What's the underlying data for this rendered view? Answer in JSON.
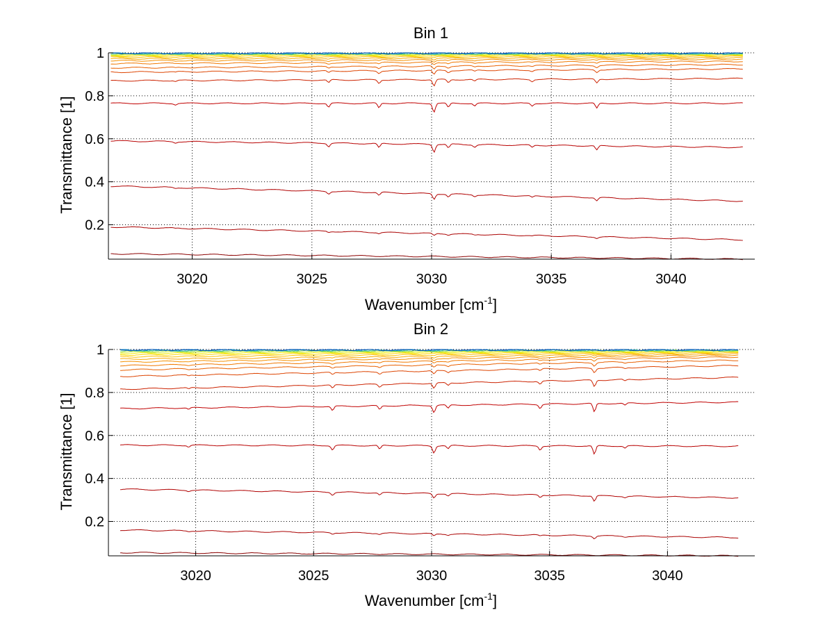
{
  "chart_data": [
    {
      "type": "line",
      "title": "Bin 1",
      "xlabel": "Wavenumber [cm",
      "xlabel_sup": "-1",
      "xlabel_suffix": "]",
      "ylabel": "Transmittance [1]",
      "xlim": [
        3016.5,
        3043.5
      ],
      "ylim": [
        0.04,
        1.0
      ],
      "xticks": [
        3020,
        3025,
        3030,
        3035,
        3040
      ],
      "yticks": [
        0.2,
        0.4,
        0.6,
        0.8,
        1
      ],
      "xtick_labels": [
        "3020",
        "3025",
        "3030",
        "3035",
        "3040"
      ],
      "ytick_labels": [
        "0.2",
        "0.4",
        "0.6",
        "0.8",
        "1"
      ],
      "grid": true,
      "x_range": [
        3016.6,
        3043.0
      ],
      "dips": [
        {
          "x": 3019.3,
          "depth": 0.15
        },
        {
          "x": 3025.7,
          "depth": 0.45
        },
        {
          "x": 3027.8,
          "depth": 0.55
        },
        {
          "x": 3030.1,
          "depth": 1.0
        },
        {
          "x": 3030.7,
          "depth": 0.5
        },
        {
          "x": 3031.8,
          "depth": 0.3
        },
        {
          "x": 3034.2,
          "depth": 0.3
        },
        {
          "x": 3036.9,
          "depth": 0.6
        }
      ],
      "series": [
        {
          "start": 0.065,
          "end": 0.04,
          "dip_scale": 0.0,
          "color": "#8b0000"
        },
        {
          "start": 0.19,
          "end": 0.13,
          "dip_scale": 0.01,
          "color": "#aa0000"
        },
        {
          "start": 0.38,
          "end": 0.31,
          "dip_scale": 0.025,
          "color": "#b00000"
        },
        {
          "start": 0.59,
          "end": 0.56,
          "dip_scale": 0.035,
          "color": "#b80000"
        },
        {
          "start": 0.765,
          "end": 0.765,
          "dip_scale": 0.04,
          "color": "#c00000"
        },
        {
          "start": 0.87,
          "end": 0.88,
          "dip_scale": 0.03,
          "color": "#cc2200"
        },
        {
          "start": 0.91,
          "end": 0.925,
          "dip_scale": 0.02,
          "color": "#dd4400"
        },
        {
          "start": 0.93,
          "end": 0.945,
          "dip_scale": 0.015,
          "color": "#e86000"
        },
        {
          "start": 0.95,
          "end": 0.96,
          "dip_scale": 0.01,
          "color": "#f07800"
        },
        {
          "start": 0.963,
          "end": 0.97,
          "dip_scale": 0.008,
          "color": "#f59000"
        },
        {
          "start": 0.972,
          "end": 0.977,
          "dip_scale": 0.006,
          "color": "#f8a800"
        },
        {
          "start": 0.979,
          "end": 0.983,
          "dip_scale": 0.004,
          "color": "#fbc000"
        },
        {
          "start": 0.985,
          "end": 0.987,
          "dip_scale": 0.003,
          "color": "#fdd800"
        },
        {
          "start": 0.989,
          "end": 0.991,
          "dip_scale": 0.002,
          "color": "#eeee00"
        },
        {
          "start": 0.992,
          "end": 0.993,
          "dip_scale": 0.002,
          "color": "#c8e628"
        },
        {
          "start": 0.994,
          "end": 0.995,
          "dip_scale": 0.001,
          "color": "#90d860"
        },
        {
          "start": 0.996,
          "end": 0.996,
          "dip_scale": 0.001,
          "color": "#40c0a0"
        },
        {
          "start": 0.997,
          "end": 0.997,
          "dip_scale": 0.001,
          "color": "#1e90c8"
        },
        {
          "start": 0.998,
          "end": 0.998,
          "dip_scale": 0.0,
          "color": "#0050b0"
        }
      ]
    },
    {
      "type": "line",
      "title": "Bin 2",
      "xlabel": "Wavenumber [cm",
      "xlabel_sup": "-1",
      "xlabel_suffix": "]",
      "ylabel": "Transmittance [1]",
      "xlim": [
        3016.3,
        3043.7
      ],
      "ylim": [
        0.04,
        1.0
      ],
      "xticks": [
        3020,
        3025,
        3030,
        3035,
        3040
      ],
      "yticks": [
        0.2,
        0.4,
        0.6,
        0.8,
        1
      ],
      "xtick_labels": [
        "3020",
        "3025",
        "3030",
        "3035",
        "3040"
      ],
      "ytick_labels": [
        "0.2",
        "0.4",
        "0.6",
        "0.8",
        "1"
      ],
      "grid": true,
      "x_range": [
        3016.8,
        3043.0
      ],
      "dips": [
        {
          "x": 3019.7,
          "depth": 0.2
        },
        {
          "x": 3025.8,
          "depth": 0.5
        },
        {
          "x": 3027.8,
          "depth": 0.45
        },
        {
          "x": 3030.1,
          "depth": 0.8
        },
        {
          "x": 3030.7,
          "depth": 0.4
        },
        {
          "x": 3034.6,
          "depth": 0.45
        },
        {
          "x": 3036.9,
          "depth": 1.0
        },
        {
          "x": 3038.2,
          "depth": 0.25
        }
      ],
      "series": [
        {
          "start": 0.055,
          "end": 0.04,
          "dip_scale": 0.0,
          "color": "#8b0000"
        },
        {
          "start": 0.16,
          "end": 0.125,
          "dip_scale": 0.012,
          "color": "#aa0000"
        },
        {
          "start": 0.35,
          "end": 0.31,
          "dip_scale": 0.025,
          "color": "#b00000"
        },
        {
          "start": 0.555,
          "end": 0.55,
          "dip_scale": 0.04,
          "color": "#b80000"
        },
        {
          "start": 0.725,
          "end": 0.755,
          "dip_scale": 0.04,
          "color": "#c00000"
        },
        {
          "start": 0.815,
          "end": 0.87,
          "dip_scale": 0.03,
          "color": "#cc2200"
        },
        {
          "start": 0.875,
          "end": 0.925,
          "dip_scale": 0.02,
          "color": "#dd4400"
        },
        {
          "start": 0.905,
          "end": 0.95,
          "dip_scale": 0.015,
          "color": "#e86000"
        },
        {
          "start": 0.925,
          "end": 0.965,
          "dip_scale": 0.01,
          "color": "#f07800"
        },
        {
          "start": 0.942,
          "end": 0.973,
          "dip_scale": 0.008,
          "color": "#f59000"
        },
        {
          "start": 0.955,
          "end": 0.979,
          "dip_scale": 0.006,
          "color": "#f8a800"
        },
        {
          "start": 0.966,
          "end": 0.984,
          "dip_scale": 0.004,
          "color": "#fbc000"
        },
        {
          "start": 0.975,
          "end": 0.988,
          "dip_scale": 0.003,
          "color": "#fdd800"
        },
        {
          "start": 0.982,
          "end": 0.991,
          "dip_scale": 0.002,
          "color": "#eeee00"
        },
        {
          "start": 0.988,
          "end": 0.993,
          "dip_scale": 0.002,
          "color": "#c8e628"
        },
        {
          "start": 0.992,
          "end": 0.995,
          "dip_scale": 0.001,
          "color": "#90d860"
        },
        {
          "start": 0.995,
          "end": 0.996,
          "dip_scale": 0.001,
          "color": "#40c0a0"
        },
        {
          "start": 0.997,
          "end": 0.997,
          "dip_scale": 0.001,
          "color": "#1e90c8"
        },
        {
          "start": 0.998,
          "end": 0.998,
          "dip_scale": 0.0,
          "color": "#0050b0"
        }
      ]
    }
  ]
}
